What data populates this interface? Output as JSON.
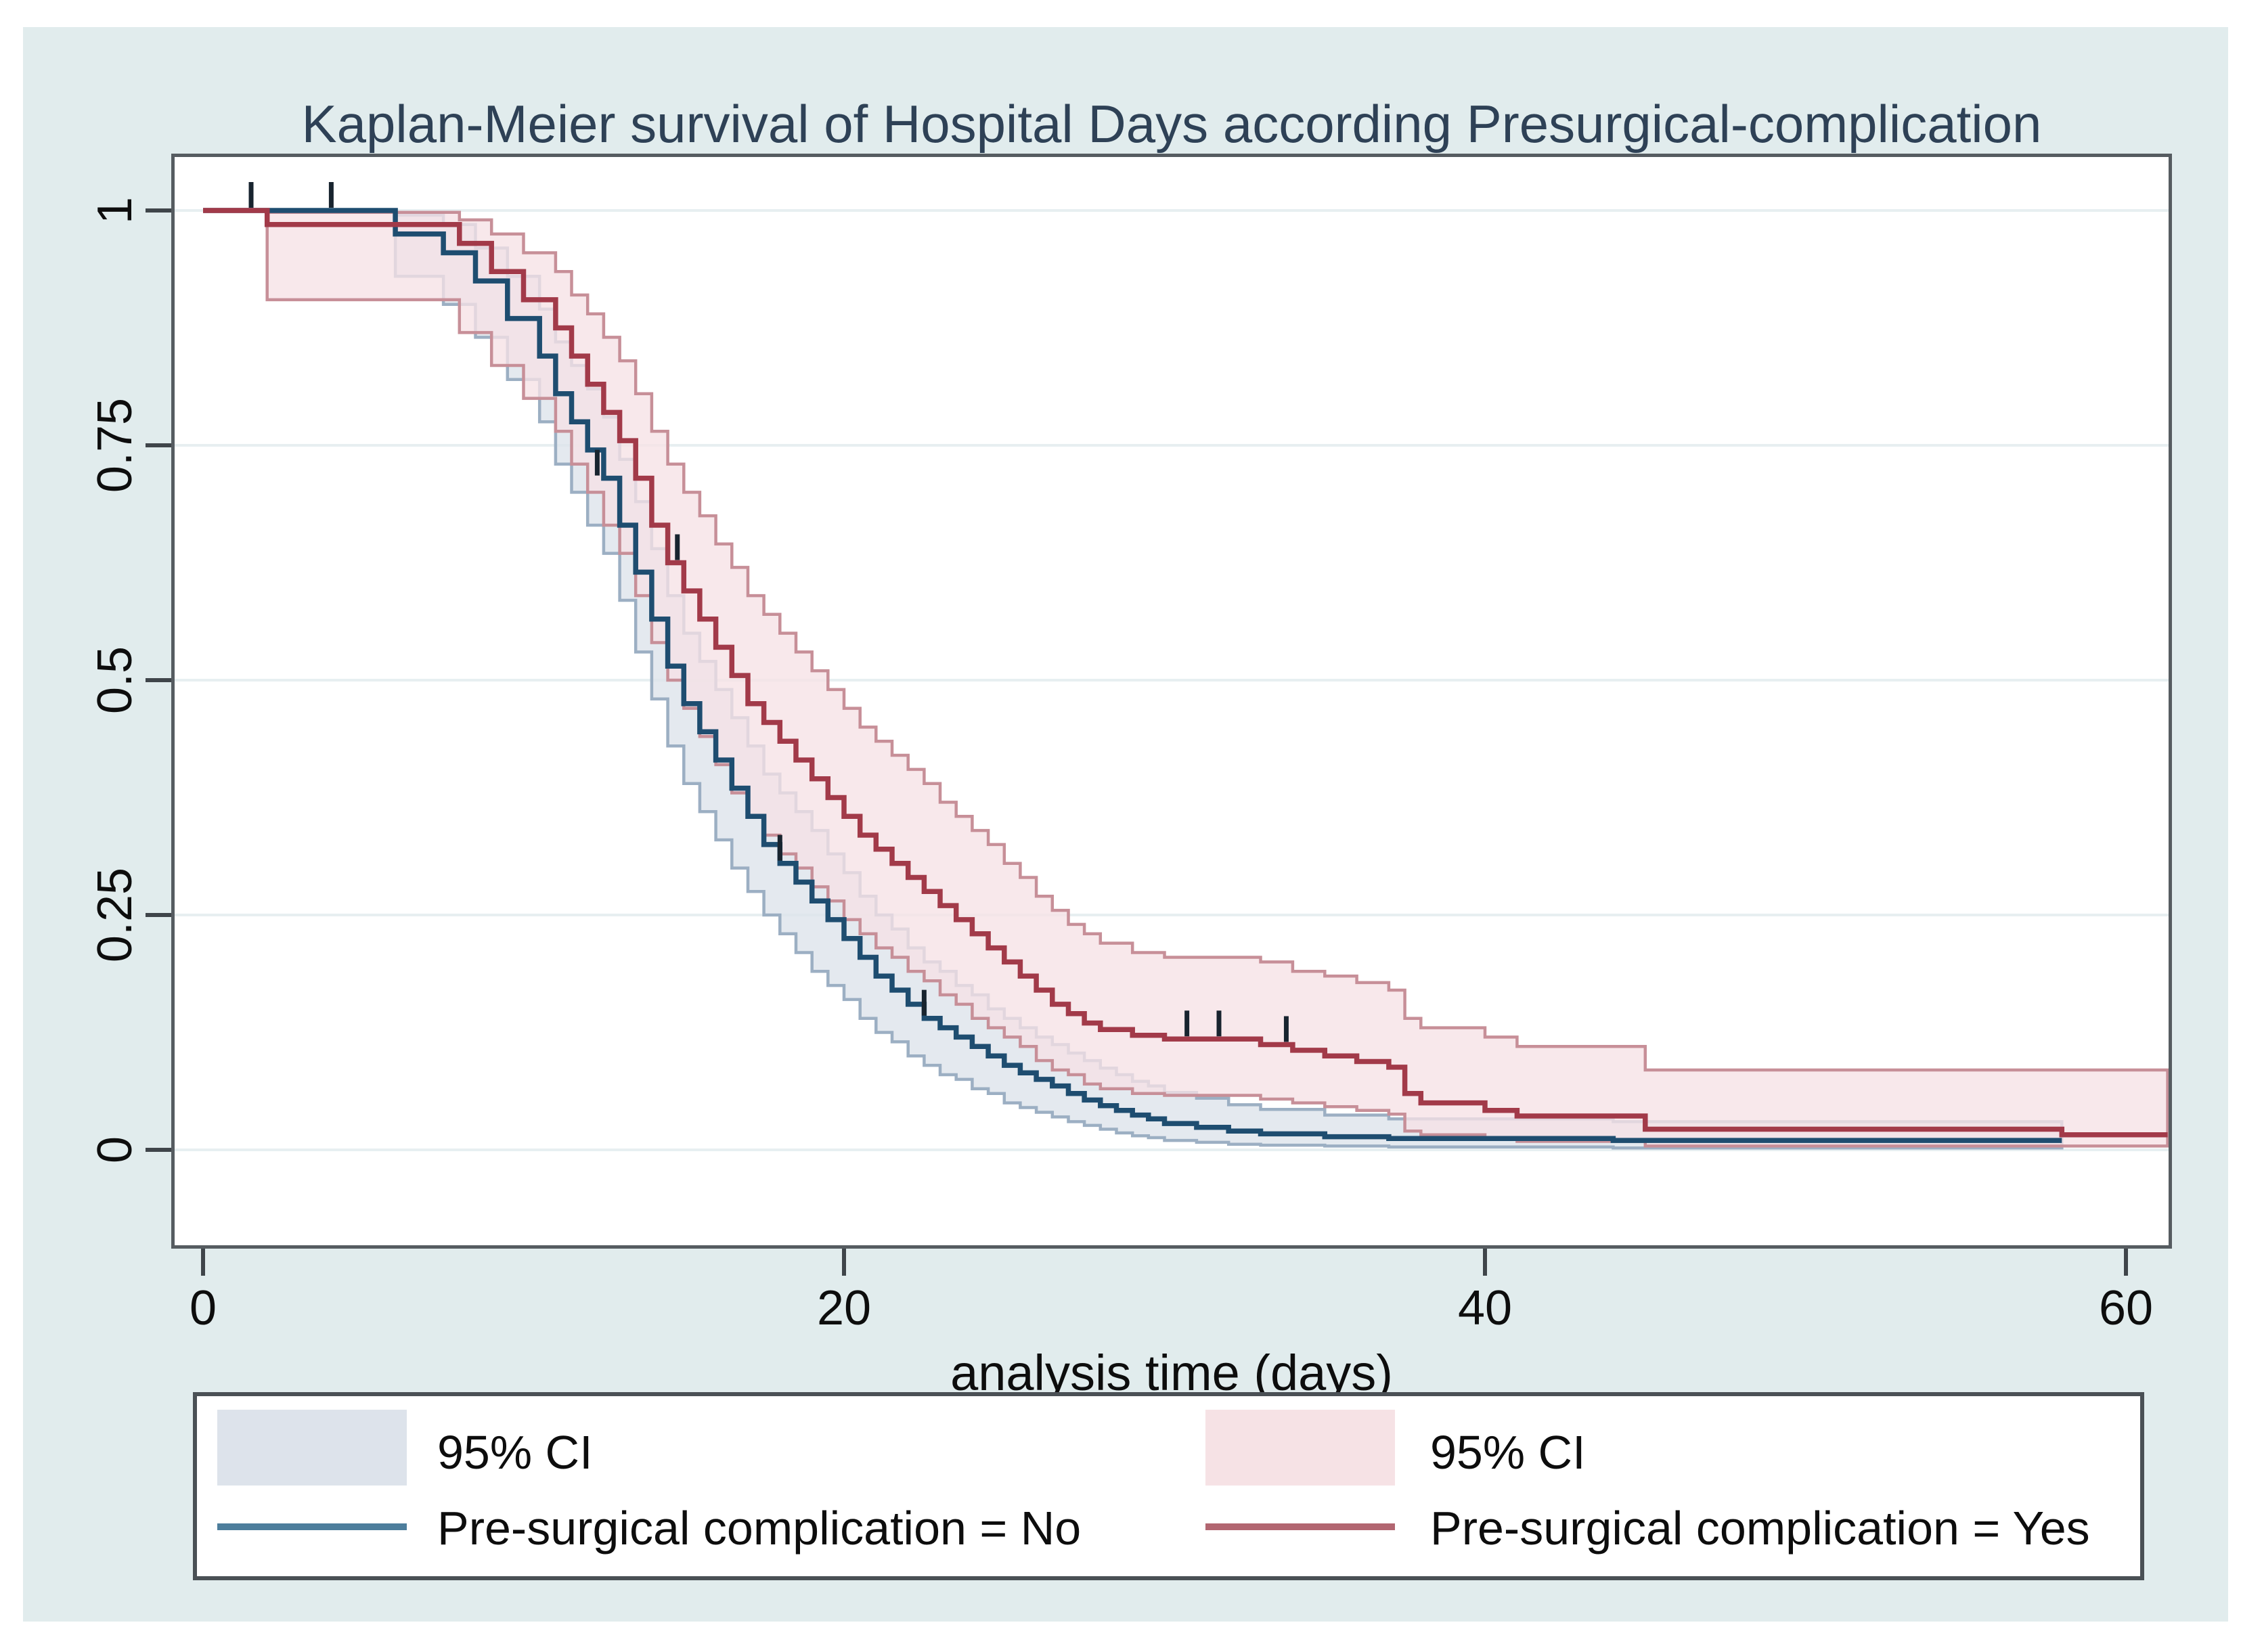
{
  "title": "Kaplan-Meier survival of Hospital Days according Presurgical-complication",
  "colors": {
    "figure_background": "#e1eced",
    "plot_background": "#ffffff",
    "gridline": "#e7eff1",
    "axis": "#3f454a",
    "title_text": "#2e4156",
    "no_line": "#1e4d70",
    "no_ci_fill": "#dde3eb",
    "no_ci_edge": "#9cafc3",
    "yes_line": "#a23a49",
    "yes_ci_fill": "#f6e2e5",
    "yes_ci_edge": "#c78f98",
    "censor_mark": "#18242f"
  },
  "legend": {
    "ci_label_no": "95% CI",
    "ci_label_yes": "95% CI",
    "series_label_no": "Pre-surgical complication = No",
    "series_label_yes": "Pre-surgical complication = Yes"
  },
  "chart_data": {
    "type": "line",
    "subtype": "kaplan-meier-step-with-ci",
    "title": "Kaplan-Meier survival of Hospital Days according Presurgical-complication",
    "xlabel": "analysis time (days)",
    "ylabel": "",
    "xlim": [
      0,
      62.3
    ],
    "ylim": [
      0,
      1
    ],
    "xticks": [
      0,
      20,
      40,
      60
    ],
    "xtick_labels": [
      "0",
      "20",
      "40",
      "60"
    ],
    "yticks": [
      1,
      0.75,
      0.5,
      0.25,
      0
    ],
    "ytick_labels": [
      "1",
      "0.75",
      "0.5",
      "0.25",
      "0"
    ],
    "grid": "horizontal",
    "legend_position": "bottom",
    "series": [
      {
        "name": "Pre-surgical complication = No",
        "ci_name": "95% CI",
        "steps": [
          [
            0,
            1.0
          ],
          [
            6,
            0.975
          ],
          [
            7.5,
            0.955
          ],
          [
            8.5,
            0.925
          ],
          [
            9.5,
            0.885
          ],
          [
            10.5,
            0.845
          ],
          [
            11,
            0.805
          ],
          [
            11.5,
            0.775
          ],
          [
            12,
            0.745
          ],
          [
            12.5,
            0.715
          ],
          [
            13,
            0.665
          ],
          [
            13.5,
            0.615
          ],
          [
            14,
            0.565
          ],
          [
            14.5,
            0.515
          ],
          [
            15,
            0.475
          ],
          [
            15.5,
            0.445
          ],
          [
            16,
            0.415
          ],
          [
            16.5,
            0.385
          ],
          [
            17,
            0.355
          ],
          [
            17.5,
            0.325
          ],
          [
            18,
            0.305
          ],
          [
            18.5,
            0.285
          ],
          [
            19,
            0.265
          ],
          [
            19.5,
            0.245
          ],
          [
            20,
            0.225
          ],
          [
            20.5,
            0.205
          ],
          [
            21,
            0.185
          ],
          [
            21.5,
            0.17
          ],
          [
            22,
            0.155
          ],
          [
            22.5,
            0.14
          ],
          [
            23,
            0.13
          ],
          [
            23.5,
            0.12
          ],
          [
            24,
            0.11
          ],
          [
            24.5,
            0.1
          ],
          [
            25,
            0.09
          ],
          [
            25.5,
            0.082
          ],
          [
            26,
            0.075
          ],
          [
            26.5,
            0.068
          ],
          [
            27,
            0.06
          ],
          [
            27.5,
            0.053
          ],
          [
            28,
            0.047
          ],
          [
            28.5,
            0.042
          ],
          [
            29,
            0.037
          ],
          [
            29.5,
            0.033
          ],
          [
            30,
            0.028
          ],
          [
            31,
            0.024
          ],
          [
            32,
            0.02
          ],
          [
            33,
            0.017
          ],
          [
            35,
            0.014
          ],
          [
            37,
            0.012
          ],
          [
            44,
            0.01
          ],
          [
            58,
            0.01
          ]
        ],
        "ci": [
          [
            6,
            0.93,
            0.995
          ],
          [
            7.5,
            0.9,
            0.985
          ],
          [
            8.5,
            0.865,
            0.96
          ],
          [
            9.5,
            0.82,
            0.93
          ],
          [
            10.5,
            0.775,
            0.895
          ],
          [
            11,
            0.73,
            0.86
          ],
          [
            11.5,
            0.7,
            0.835
          ],
          [
            12,
            0.665,
            0.81
          ],
          [
            12.5,
            0.635,
            0.78
          ],
          [
            13,
            0.585,
            0.735
          ],
          [
            13.5,
            0.53,
            0.69
          ],
          [
            14,
            0.48,
            0.64
          ],
          [
            14.5,
            0.43,
            0.59
          ],
          [
            15,
            0.39,
            0.55
          ],
          [
            15.5,
            0.36,
            0.52
          ],
          [
            16,
            0.33,
            0.49
          ],
          [
            16.5,
            0.3,
            0.46
          ],
          [
            17,
            0.275,
            0.43
          ],
          [
            17.5,
            0.25,
            0.4
          ],
          [
            18,
            0.23,
            0.38
          ],
          [
            18.5,
            0.21,
            0.36
          ],
          [
            19,
            0.19,
            0.34
          ],
          [
            19.5,
            0.175,
            0.315
          ],
          [
            20,
            0.16,
            0.295
          ],
          [
            20.5,
            0.14,
            0.27
          ],
          [
            21,
            0.125,
            0.25
          ],
          [
            21.5,
            0.115,
            0.235
          ],
          [
            22,
            0.1,
            0.215
          ],
          [
            22.5,
            0.09,
            0.2
          ],
          [
            23,
            0.08,
            0.19
          ],
          [
            23.5,
            0.075,
            0.175
          ],
          [
            24,
            0.065,
            0.165
          ],
          [
            24.5,
            0.06,
            0.15
          ],
          [
            25,
            0.05,
            0.14
          ],
          [
            25.5,
            0.045,
            0.13
          ],
          [
            26,
            0.04,
            0.12
          ],
          [
            26.5,
            0.035,
            0.112
          ],
          [
            27,
            0.03,
            0.103
          ],
          [
            27.5,
            0.026,
            0.095
          ],
          [
            28,
            0.022,
            0.087
          ],
          [
            28.5,
            0.018,
            0.08
          ],
          [
            29,
            0.015,
            0.073
          ],
          [
            29.5,
            0.013,
            0.068
          ],
          [
            30,
            0.01,
            0.061
          ],
          [
            31,
            0.008,
            0.055
          ],
          [
            32,
            0.006,
            0.048
          ],
          [
            33,
            0.005,
            0.043
          ],
          [
            35,
            0.004,
            0.037
          ],
          [
            37,
            0.003,
            0.033
          ],
          [
            44,
            0.002,
            0.03
          ],
          [
            58,
            0.002,
            0.03
          ]
        ],
        "censor_marks": [
          [
            1.5,
            1.0
          ],
          [
            4.0,
            1.0
          ],
          [
            12.3,
            0.715
          ],
          [
            18.0,
            0.305
          ],
          [
            22.5,
            0.14
          ]
        ]
      },
      {
        "name": "Pre-surgical complication = Yes",
        "ci_name": "95% CI",
        "steps": [
          [
            0,
            1.0
          ],
          [
            2,
            0.985
          ],
          [
            8,
            0.965
          ],
          [
            9,
            0.935
          ],
          [
            10,
            0.905
          ],
          [
            11,
            0.875
          ],
          [
            11.5,
            0.845
          ],
          [
            12,
            0.815
          ],
          [
            12.5,
            0.785
          ],
          [
            13,
            0.755
          ],
          [
            13.5,
            0.715
          ],
          [
            14,
            0.665
          ],
          [
            14.5,
            0.625
          ],
          [
            15,
            0.595
          ],
          [
            15.5,
            0.565
          ],
          [
            16,
            0.535
          ],
          [
            16.5,
            0.505
          ],
          [
            17,
            0.475
          ],
          [
            17.5,
            0.455
          ],
          [
            18,
            0.435
          ],
          [
            18.5,
            0.415
          ],
          [
            19,
            0.395
          ],
          [
            19.5,
            0.375
          ],
          [
            20,
            0.355
          ],
          [
            20.5,
            0.335
          ],
          [
            21,
            0.32
          ],
          [
            21.5,
            0.305
          ],
          [
            22,
            0.29
          ],
          [
            22.5,
            0.275
          ],
          [
            23,
            0.26
          ],
          [
            23.5,
            0.245
          ],
          [
            24,
            0.23
          ],
          [
            24.5,
            0.215
          ],
          [
            25,
            0.2
          ],
          [
            25.5,
            0.185
          ],
          [
            26,
            0.17
          ],
          [
            26.5,
            0.155
          ],
          [
            27,
            0.145
          ],
          [
            27.5,
            0.135
          ],
          [
            28,
            0.128
          ],
          [
            29,
            0.122
          ],
          [
            30,
            0.118
          ],
          [
            33,
            0.112
          ],
          [
            34,
            0.106
          ],
          [
            35,
            0.1
          ],
          [
            36,
            0.094
          ],
          [
            37,
            0.088
          ],
          [
            37.5,
            0.06
          ],
          [
            38,
            0.05
          ],
          [
            40,
            0.042
          ],
          [
            41,
            0.036
          ],
          [
            45,
            0.022
          ],
          [
            58,
            0.016
          ],
          [
            61.3,
            0.016
          ]
        ],
        "ci": [
          [
            2,
            0.905,
            0.998
          ],
          [
            8,
            0.87,
            0.99
          ],
          [
            9,
            0.835,
            0.975
          ],
          [
            10,
            0.8,
            0.955
          ],
          [
            11,
            0.765,
            0.935
          ],
          [
            11.5,
            0.73,
            0.91
          ],
          [
            12,
            0.7,
            0.89
          ],
          [
            12.5,
            0.665,
            0.865
          ],
          [
            13,
            0.635,
            0.84
          ],
          [
            13.5,
            0.59,
            0.805
          ],
          [
            14,
            0.54,
            0.765
          ],
          [
            14.5,
            0.5,
            0.73
          ],
          [
            15,
            0.47,
            0.7
          ],
          [
            15.5,
            0.44,
            0.675
          ],
          [
            16,
            0.41,
            0.645
          ],
          [
            16.5,
            0.38,
            0.62
          ],
          [
            17,
            0.355,
            0.59
          ],
          [
            17.5,
            0.335,
            0.57
          ],
          [
            18,
            0.315,
            0.55
          ],
          [
            18.5,
            0.3,
            0.53
          ],
          [
            19,
            0.28,
            0.51
          ],
          [
            19.5,
            0.265,
            0.49
          ],
          [
            20,
            0.245,
            0.47
          ],
          [
            20.5,
            0.23,
            0.45
          ],
          [
            21,
            0.215,
            0.435
          ],
          [
            21.5,
            0.205,
            0.42
          ],
          [
            22,
            0.19,
            0.405
          ],
          [
            22.5,
            0.18,
            0.39
          ],
          [
            23,
            0.165,
            0.37
          ],
          [
            23.5,
            0.155,
            0.355
          ],
          [
            24,
            0.14,
            0.34
          ],
          [
            24.5,
            0.13,
            0.325
          ],
          [
            25,
            0.12,
            0.305
          ],
          [
            25.5,
            0.11,
            0.29
          ],
          [
            26,
            0.095,
            0.27
          ],
          [
            26.5,
            0.085,
            0.255
          ],
          [
            27,
            0.08,
            0.24
          ],
          [
            27.5,
            0.07,
            0.23
          ],
          [
            28,
            0.065,
            0.22
          ],
          [
            29,
            0.06,
            0.21
          ],
          [
            30,
            0.058,
            0.205
          ],
          [
            33,
            0.054,
            0.2
          ],
          [
            34,
            0.05,
            0.19
          ],
          [
            35,
            0.046,
            0.185
          ],
          [
            36,
            0.042,
            0.178
          ],
          [
            37,
            0.038,
            0.17
          ],
          [
            37.5,
            0.02,
            0.14
          ],
          [
            38,
            0.016,
            0.13
          ],
          [
            40,
            0.012,
            0.12
          ],
          [
            41,
            0.009,
            0.11
          ],
          [
            45,
            0.004,
            0.085
          ],
          [
            61.3,
            0.004,
            0.085
          ]
        ],
        "censor_marks": [
          [
            14.8,
            0.625
          ],
          [
            30.7,
            0.118
          ],
          [
            31.7,
            0.118
          ],
          [
            33.8,
            0.112
          ]
        ]
      }
    ]
  }
}
